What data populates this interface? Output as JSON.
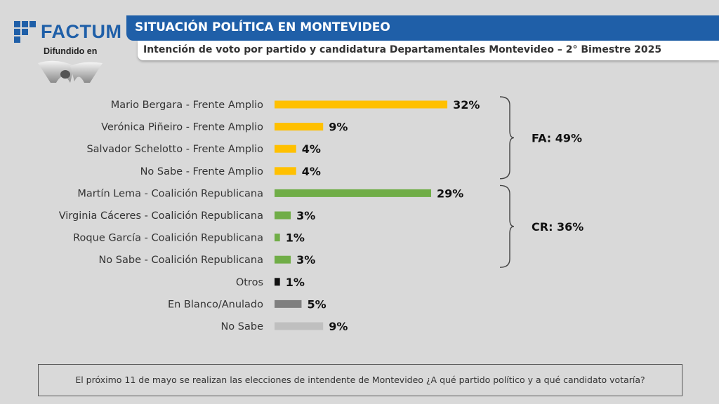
{
  "brand": {
    "name": "FACTUM",
    "diffused_label": "Difundido en"
  },
  "header": {
    "title": "SITUACIÓN POLÍTICA EN MONTEVIDEO",
    "subtitle": "Intención de voto por partido y candidatura Departamentales Montevideo – 2° Bimestre 2025"
  },
  "chart_data": {
    "type": "bar",
    "orientation": "horizontal",
    "categories": [
      "Mario Bergara - Frente Amplio",
      "Verónica Piñeiro - Frente Amplio",
      "Salvador Schelotto - Frente Amplio",
      "No Sabe - Frente Amplio",
      "Martín Lema - Coalición Republicana",
      "Virginia Cáceres - Coalición Republicana",
      "Roque García - Coalición Republicana",
      "No Sabe - Coalición Republicana",
      "Otros",
      "En Blanco/Anulado",
      "No Sabe"
    ],
    "values": [
      32,
      9,
      4,
      4,
      29,
      3,
      1,
      3,
      1,
      5,
      9
    ],
    "value_labels": [
      "32%",
      "9%",
      "4%",
      "4%",
      "29%",
      "3%",
      "1%",
      "3%",
      "1%",
      "5%",
      "9%"
    ],
    "bar_colors": [
      "#ffc000",
      "#ffc000",
      "#ffc000",
      "#ffc000",
      "#70ad47",
      "#70ad47",
      "#70ad47",
      "#70ad47",
      "#111111",
      "#7f7f7f",
      "#bfbfbf"
    ],
    "groups": [
      {
        "label": "FA: 49%",
        "first": 0,
        "last": 3
      },
      {
        "label": "CR: 36%",
        "first": 4,
        "last": 7
      }
    ],
    "xlim": [
      0,
      35
    ],
    "grid": false
  },
  "footer": {
    "question": "El próximo 11 de mayo se realizan las elecciones de intendente de Montevideo ¿A qué partido político y a qué candidato votaría?"
  }
}
